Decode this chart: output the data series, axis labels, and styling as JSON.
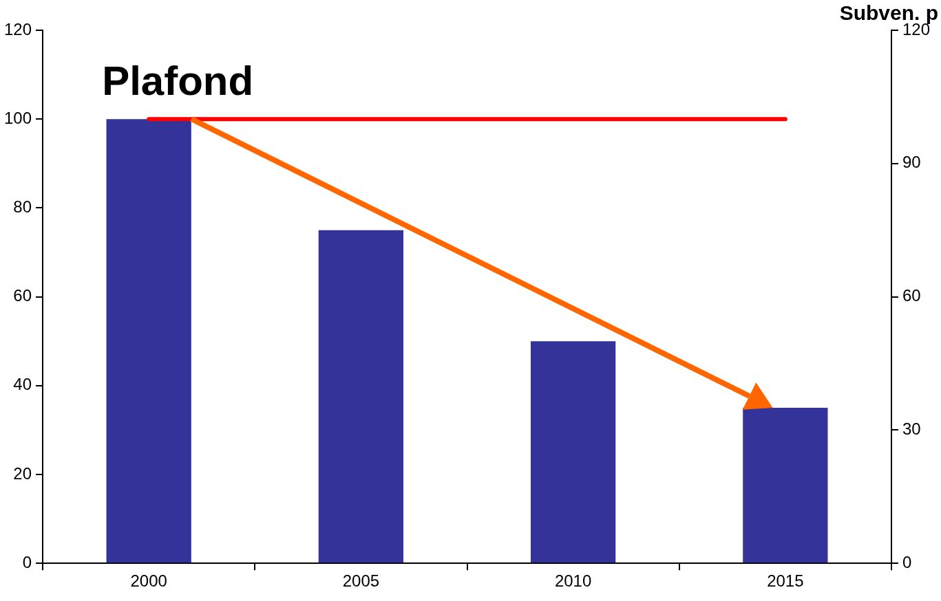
{
  "chart_data": {
    "type": "bar",
    "y2label": "Subven. p",
    "categories": [
      "2000",
      "2005",
      "2010",
      "2015"
    ],
    "series": [
      {
        "color": "#333399",
        "values": [
          100,
          75,
          50,
          35
        ]
      },
      {
        "type": "line",
        "color": "#ff0000",
        "values": [
          100,
          100,
          100,
          100
        ]
      }
    ],
    "marker": "none",
    "ylim": [
      0,
      120
    ],
    "yticks": [
      0,
      20,
      40,
      60,
      80,
      100,
      120
    ],
    "y2lim": [
      0,
      120
    ],
    "y2ticks": [
      0,
      30,
      60,
      90,
      120
    ],
    "annotations": [
      {
        "text": "Plafond",
        "x": "2000",
        "y": 100
      }
    ],
    "grid": false,
    "legend": false
  }
}
